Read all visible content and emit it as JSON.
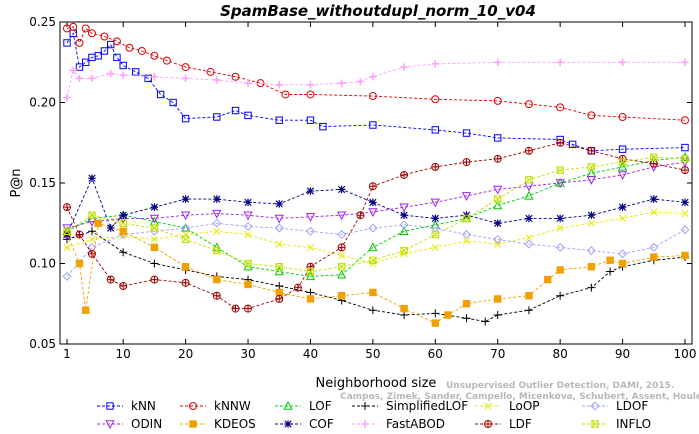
{
  "chart_data": {
    "type": "line",
    "title": "SpamBase_withoutdupl_norm_10_v04",
    "xlabel": "Neighborhood size",
    "ylabel": "P@n",
    "xlim": [
      0,
      100
    ],
    "ylim": [
      0.05,
      0.25
    ],
    "x_ticks": [
      1,
      10,
      20,
      30,
      40,
      50,
      60,
      70,
      80,
      90,
      100
    ],
    "y_ticks": [
      0.05,
      0.1,
      0.15,
      0.2,
      0.25
    ],
    "x_tick_labels": [
      "1",
      "10",
      "20",
      "30",
      "40",
      "50",
      "60",
      "70",
      "80",
      "90",
      "100"
    ],
    "y_tick_labels": [
      "0.05",
      "0.10",
      "0.15",
      "0.20",
      "0.25"
    ],
    "legend_position": "bottom",
    "grid": false,
    "watermark": [
      "Unsupervised Outlier Detection, DAMI, 2015.",
      "Campos, Zimek, Sander, Campello, Micenkova, Schubert, Assent, Houle"
    ],
    "series": [
      {
        "name": "kNN",
        "color": "#0000ff",
        "marker": "square",
        "points": [
          [
            1,
            0.237
          ],
          [
            2,
            0.243
          ],
          [
            3,
            0.222
          ],
          [
            4,
            0.225
          ],
          [
            5,
            0.228
          ],
          [
            6,
            0.229
          ],
          [
            7,
            0.232
          ],
          [
            8,
            0.236
          ],
          [
            9,
            0.228
          ],
          [
            10,
            0.223
          ],
          [
            12,
            0.219
          ],
          [
            14,
            0.215
          ],
          [
            16,
            0.205
          ],
          [
            18,
            0.2
          ],
          [
            20,
            0.19
          ],
          [
            25,
            0.191
          ],
          [
            28,
            0.195
          ],
          [
            30,
            0.192
          ],
          [
            35,
            0.189
          ],
          [
            40,
            0.189
          ],
          [
            42,
            0.185
          ],
          [
            50,
            0.186
          ],
          [
            60,
            0.183
          ],
          [
            65,
            0.181
          ],
          [
            70,
            0.178
          ],
          [
            80,
            0.177
          ],
          [
            82,
            0.174
          ],
          [
            85,
            0.17
          ],
          [
            90,
            0.171
          ],
          [
            100,
            0.172
          ]
        ]
      },
      {
        "name": "kNNW",
        "color": "#e00000",
        "marker": "circle",
        "points": [
          [
            1,
            0.246
          ],
          [
            2,
            0.247
          ],
          [
            3,
            0.237
          ],
          [
            4,
            0.246
          ],
          [
            5,
            0.243
          ],
          [
            7,
            0.241
          ],
          [
            9,
            0.238
          ],
          [
            11,
            0.234
          ],
          [
            13,
            0.232
          ],
          [
            15,
            0.229
          ],
          [
            17,
            0.226
          ],
          [
            20,
            0.222
          ],
          [
            24,
            0.219
          ],
          [
            28,
            0.216
          ],
          [
            32,
            0.212
          ],
          [
            36,
            0.205
          ],
          [
            40,
            0.205
          ],
          [
            50,
            0.204
          ],
          [
            60,
            0.202
          ],
          [
            70,
            0.201
          ],
          [
            75,
            0.199
          ],
          [
            80,
            0.197
          ],
          [
            85,
            0.192
          ],
          [
            90,
            0.191
          ],
          [
            100,
            0.189
          ]
        ]
      },
      {
        "name": "LOF",
        "color": "#00cc00",
        "marker": "triangle-up",
        "points": [
          [
            1,
            0.12
          ],
          [
            5,
            0.128
          ],
          [
            10,
            0.13
          ],
          [
            15,
            0.126
          ],
          [
            20,
            0.122
          ],
          [
            25,
            0.11
          ],
          [
            30,
            0.098
          ],
          [
            35,
            0.095
          ],
          [
            40,
            0.092
          ],
          [
            45,
            0.093
          ],
          [
            50,
            0.11
          ],
          [
            55,
            0.12
          ],
          [
            60,
            0.124
          ],
          [
            65,
            0.128
          ],
          [
            70,
            0.136
          ],
          [
            75,
            0.142
          ],
          [
            80,
            0.15
          ],
          [
            85,
            0.156
          ],
          [
            90,
            0.16
          ],
          [
            95,
            0.164
          ],
          [
            100,
            0.166
          ]
        ]
      },
      {
        "name": "SimplifiedLOF",
        "color": "#000000",
        "marker": "plus",
        "points": [
          [
            1,
            0.115
          ],
          [
            5,
            0.12
          ],
          [
            10,
            0.107
          ],
          [
            15,
            0.1
          ],
          [
            20,
            0.096
          ],
          [
            25,
            0.092
          ],
          [
            30,
            0.09
          ],
          [
            35,
            0.086
          ],
          [
            40,
            0.082
          ],
          [
            45,
            0.077
          ],
          [
            50,
            0.071
          ],
          [
            55,
            0.068
          ],
          [
            60,
            0.069
          ],
          [
            65,
            0.066
          ],
          [
            68,
            0.064
          ],
          [
            70,
            0.068
          ],
          [
            75,
            0.071
          ],
          [
            80,
            0.08
          ],
          [
            85,
            0.085
          ],
          [
            88,
            0.095
          ],
          [
            90,
            0.098
          ],
          [
            95,
            0.102
          ],
          [
            100,
            0.104
          ]
        ]
      },
      {
        "name": "LoOP",
        "color": "#e8e800",
        "marker": "x",
        "points": [
          [
            1,
            0.11
          ],
          [
            5,
            0.115
          ],
          [
            10,
            0.117
          ],
          [
            15,
            0.115
          ],
          [
            20,
            0.118
          ],
          [
            25,
            0.12
          ],
          [
            30,
            0.118
          ],
          [
            35,
            0.112
          ],
          [
            40,
            0.11
          ],
          [
            45,
            0.105
          ],
          [
            50,
            0.1
          ],
          [
            55,
            0.106
          ],
          [
            60,
            0.11
          ],
          [
            65,
            0.114
          ],
          [
            70,
            0.112
          ],
          [
            75,
            0.116
          ],
          [
            80,
            0.122
          ],
          [
            85,
            0.125
          ],
          [
            90,
            0.128
          ],
          [
            95,
            0.132
          ],
          [
            100,
            0.131
          ]
        ]
      },
      {
        "name": "LDOF",
        "color": "#a0a0ff",
        "marker": "diamond",
        "points": [
          [
            1,
            0.092
          ],
          [
            5,
            0.11
          ],
          [
            10,
            0.118
          ],
          [
            15,
            0.12
          ],
          [
            20,
            0.122
          ],
          [
            25,
            0.125
          ],
          [
            30,
            0.123
          ],
          [
            35,
            0.122
          ],
          [
            40,
            0.12
          ],
          [
            45,
            0.118
          ],
          [
            50,
            0.122
          ],
          [
            55,
            0.124
          ],
          [
            60,
            0.122
          ],
          [
            65,
            0.118
          ],
          [
            70,
            0.115
          ],
          [
            75,
            0.112
          ],
          [
            80,
            0.11
          ],
          [
            85,
            0.108
          ],
          [
            90,
            0.106
          ],
          [
            95,
            0.11
          ],
          [
            100,
            0.121
          ]
        ]
      },
      {
        "name": "ODIN",
        "color": "#a020f0",
        "marker": "triangle-down",
        "points": [
          [
            1,
            0.122
          ],
          [
            5,
            0.126
          ],
          [
            10,
            0.128
          ],
          [
            15,
            0.128
          ],
          [
            20,
            0.13
          ],
          [
            25,
            0.131
          ],
          [
            30,
            0.13
          ],
          [
            35,
            0.128
          ],
          [
            40,
            0.129
          ],
          [
            45,
            0.13
          ],
          [
            50,
            0.132
          ],
          [
            55,
            0.135
          ],
          [
            60,
            0.138
          ],
          [
            65,
            0.142
          ],
          [
            70,
            0.146
          ],
          [
            75,
            0.148
          ],
          [
            80,
            0.15
          ],
          [
            85,
            0.152
          ],
          [
            90,
            0.155
          ],
          [
            95,
            0.16
          ],
          [
            100,
            0.163
          ]
        ]
      },
      {
        "name": "KDEOS",
        "color": "#f0a000",
        "marker": "square-filled",
        "points": [
          [
            1,
            0.118
          ],
          [
            3,
            0.1
          ],
          [
            4,
            0.071
          ],
          [
            6,
            0.125
          ],
          [
            10,
            0.12
          ],
          [
            15,
            0.11
          ],
          [
            20,
            0.098
          ],
          [
            25,
            0.09
          ],
          [
            30,
            0.087
          ],
          [
            35,
            0.082
          ],
          [
            40,
            0.078
          ],
          [
            45,
            0.08
          ],
          [
            50,
            0.082
          ],
          [
            55,
            0.072
          ],
          [
            60,
            0.063
          ],
          [
            62,
            0.068
          ],
          [
            65,
            0.075
          ],
          [
            70,
            0.078
          ],
          [
            75,
            0.08
          ],
          [
            78,
            0.09
          ],
          [
            80,
            0.096
          ],
          [
            85,
            0.098
          ],
          [
            88,
            0.102
          ],
          [
            90,
            0.1
          ],
          [
            95,
            0.104
          ],
          [
            100,
            0.105
          ]
        ]
      },
      {
        "name": "COF",
        "color": "#000080",
        "marker": "asterisk",
        "points": [
          [
            1,
            0.118
          ],
          [
            5,
            0.153
          ],
          [
            8,
            0.122
          ],
          [
            10,
            0.13
          ],
          [
            15,
            0.135
          ],
          [
            20,
            0.14
          ],
          [
            25,
            0.14
          ],
          [
            30,
            0.138
          ],
          [
            35,
            0.137
          ],
          [
            40,
            0.145
          ],
          [
            45,
            0.146
          ],
          [
            50,
            0.138
          ],
          [
            55,
            0.13
          ],
          [
            60,
            0.128
          ],
          [
            65,
            0.13
          ],
          [
            70,
            0.125
          ],
          [
            75,
            0.128
          ],
          [
            80,
            0.128
          ],
          [
            85,
            0.13
          ],
          [
            90,
            0.135
          ],
          [
            95,
            0.14
          ],
          [
            100,
            0.138
          ]
        ]
      },
      {
        "name": "FastABOD",
        "color": "#ffa0ff",
        "marker": "plus-thick",
        "points": [
          [
            1,
            0.203
          ],
          [
            2,
            0.22
          ],
          [
            3,
            0.215
          ],
          [
            5,
            0.215
          ],
          [
            8,
            0.218
          ],
          [
            10,
            0.217
          ],
          [
            15,
            0.216
          ],
          [
            20,
            0.215
          ],
          [
            25,
            0.214
          ],
          [
            30,
            0.212
          ],
          [
            35,
            0.211
          ],
          [
            40,
            0.211
          ],
          [
            45,
            0.212
          ],
          [
            48,
            0.213
          ],
          [
            50,
            0.216
          ],
          [
            55,
            0.222
          ],
          [
            60,
            0.224
          ],
          [
            70,
            0.225
          ],
          [
            80,
            0.225
          ],
          [
            90,
            0.225
          ],
          [
            100,
            0.225
          ]
        ]
      },
      {
        "name": "LDF",
        "color": "#a00000",
        "marker": "circle-plus",
        "points": [
          [
            1,
            0.135
          ],
          [
            3,
            0.118
          ],
          [
            5,
            0.106
          ],
          [
            8,
            0.09
          ],
          [
            10,
            0.086
          ],
          [
            15,
            0.09
          ],
          [
            20,
            0.088
          ],
          [
            25,
            0.08
          ],
          [
            28,
            0.072
          ],
          [
            30,
            0.072
          ],
          [
            35,
            0.078
          ],
          [
            38,
            0.085
          ],
          [
            40,
            0.098
          ],
          [
            45,
            0.11
          ],
          [
            48,
            0.13
          ],
          [
            50,
            0.148
          ],
          [
            55,
            0.155
          ],
          [
            60,
            0.16
          ],
          [
            65,
            0.163
          ],
          [
            70,
            0.165
          ],
          [
            75,
            0.17
          ],
          [
            80,
            0.175
          ],
          [
            85,
            0.17
          ],
          [
            90,
            0.165
          ],
          [
            95,
            0.162
          ],
          [
            100,
            0.158
          ]
        ]
      },
      {
        "name": "INFLO",
        "color": "#c0e000",
        "marker": "hourglass",
        "points": [
          [
            1,
            0.12
          ],
          [
            5,
            0.13
          ],
          [
            10,
            0.125
          ],
          [
            15,
            0.122
          ],
          [
            20,
            0.115
          ],
          [
            25,
            0.108
          ],
          [
            30,
            0.1
          ],
          [
            35,
            0.098
          ],
          [
            40,
            0.095
          ],
          [
            45,
            0.098
          ],
          [
            50,
            0.102
          ],
          [
            55,
            0.108
          ],
          [
            60,
            0.118
          ],
          [
            65,
            0.128
          ],
          [
            70,
            0.14
          ],
          [
            75,
            0.152
          ],
          [
            80,
            0.158
          ],
          [
            85,
            0.16
          ],
          [
            90,
            0.163
          ],
          [
            95,
            0.166
          ],
          [
            100,
            0.165
          ]
        ]
      }
    ]
  }
}
